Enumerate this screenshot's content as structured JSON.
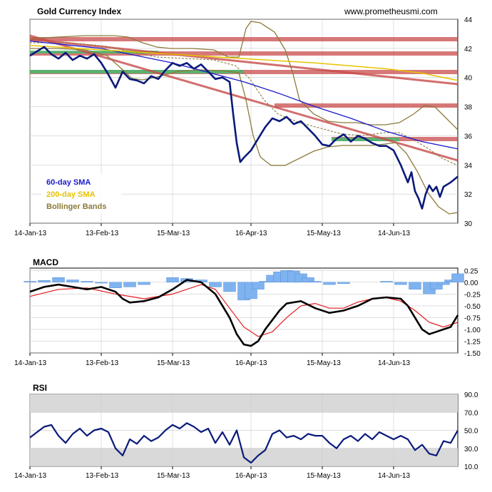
{
  "chart_data": [
    {
      "type": "line",
      "title": "Gold Currency Index",
      "source_text": "www.prometheusmi.com",
      "x_ticks": [
        "14-Jan-13",
        "13-Feb-13",
        "15-Mar-13",
        "16-Apr-13",
        "15-May-13",
        "14-Jun-13"
      ],
      "y_ticks": [
        30,
        32,
        34,
        36,
        38,
        40,
        42,
        44
      ],
      "ylim": [
        30,
        44
      ],
      "xlim": [
        0,
        120
      ],
      "x_tick_positions": [
        0,
        20,
        40,
        62,
        82,
        102
      ],
      "grid": true,
      "legend_position": "bottom-left",
      "legend": [
        {
          "label": "60-day SMA",
          "color": "#1a1acc"
        },
        {
          "label": "200-day SMA",
          "color": "#e6c300"
        },
        {
          "label": "Bollinger Bands",
          "color": "#8b7a3a"
        }
      ],
      "series": [
        {
          "name": "Gold Currency Index",
          "color": "#0a1a7a",
          "x": [
            0,
            2,
            4,
            6,
            8,
            10,
            12,
            14,
            16,
            18,
            20,
            22,
            24,
            26,
            28,
            30,
            32,
            34,
            36,
            38,
            40,
            42,
            44,
            46,
            48,
            50,
            52,
            54,
            56,
            57,
            58,
            59,
            60,
            62,
            64,
            66,
            68,
            70,
            72,
            74,
            76,
            78,
            80,
            82,
            84,
            86,
            88,
            90,
            92,
            94,
            96,
            98,
            100,
            102,
            104,
            106,
            107,
            108,
            109,
            110,
            111,
            112,
            113,
            114,
            115,
            116,
            118,
            120
          ],
          "values": [
            41.5,
            41.8,
            42.1,
            41.6,
            41.3,
            41.7,
            41.2,
            41.5,
            41.3,
            41.6,
            41.0,
            40.2,
            39.3,
            40.4,
            39.9,
            39.8,
            39.6,
            40.1,
            39.9,
            40.5,
            41.0,
            40.8,
            41.0,
            40.6,
            40.9,
            40.4,
            39.9,
            40.0,
            39.7,
            37.5,
            35.5,
            34.2,
            34.5,
            35.0,
            35.8,
            36.6,
            37.2,
            37.0,
            37.3,
            36.8,
            37.0,
            36.5,
            36.0,
            35.4,
            35.3,
            35.8,
            36.1,
            35.6,
            36.0,
            35.8,
            35.5,
            35.3,
            35.3,
            35.0,
            34.0,
            32.8,
            33.5,
            32.2,
            31.7,
            31.0,
            32.0,
            32.6,
            32.2,
            32.5,
            31.8,
            32.5,
            32.8,
            33.2
          ]
        },
        {
          "name": "60-day SMA",
          "color": "#1a1acc",
          "x": [
            0,
            20,
            40,
            60,
            70,
            80,
            90,
            100,
            110,
            120
          ],
          "values": [
            42.5,
            42.0,
            41.0,
            39.7,
            38.9,
            38.0,
            37.2,
            36.3,
            35.6,
            35.1
          ]
        },
        {
          "name": "200-day SMA",
          "color": "#e6c300",
          "x": [
            0,
            20,
            40,
            60,
            80,
            100,
            110,
            120
          ],
          "values": [
            42.2,
            41.9,
            41.6,
            41.3,
            41.0,
            40.6,
            40.3,
            39.8
          ]
        }
      ]
    },
    {
      "type": "bar",
      "title": "MACD",
      "x_ticks": [
        "14-Jan-13",
        "13-Feb-13",
        "15-Mar-13",
        "16-Apr-13",
        "15-May-13",
        "14-Jun-13"
      ],
      "x_tick_positions": [
        0,
        20,
        40,
        62,
        82,
        102
      ],
      "y_ticks": [
        "0.25",
        "0.00",
        "-0.25",
        "-0.50",
        "-0.75",
        "-1.00",
        "-1.25",
        "-1.50"
      ],
      "ylim": [
        -1.5,
        0.3
      ],
      "xlim": [
        0,
        120
      ],
      "series": [
        {
          "name": "MACD",
          "color": "#000000",
          "x": [
            0,
            4,
            8,
            12,
            16,
            20,
            24,
            26,
            28,
            32,
            36,
            40,
            44,
            48,
            52,
            56,
            58,
            60,
            62,
            64,
            66,
            68,
            70,
            72,
            76,
            80,
            84,
            88,
            92,
            96,
            100,
            104,
            106,
            108,
            110,
            112,
            114,
            116,
            118,
            120
          ],
          "values": [
            -0.2,
            -0.1,
            -0.05,
            -0.1,
            -0.15,
            -0.1,
            -0.2,
            -0.35,
            -0.43,
            -0.4,
            -0.32,
            -0.15,
            0.05,
            0.0,
            -0.25,
            -0.75,
            -1.1,
            -1.32,
            -1.35,
            -1.25,
            -1.0,
            -0.8,
            -0.6,
            -0.45,
            -0.4,
            -0.55,
            -0.65,
            -0.6,
            -0.5,
            -0.35,
            -0.32,
            -0.35,
            -0.5,
            -0.75,
            -1.0,
            -1.1,
            -1.05,
            -1.0,
            -0.95,
            -0.7
          ]
        },
        {
          "name": "Signal",
          "color": "#e41a1c",
          "x": [
            0,
            8,
            16,
            24,
            32,
            40,
            48,
            52,
            56,
            60,
            64,
            68,
            72,
            76,
            80,
            84,
            88,
            92,
            96,
            100,
            104,
            108,
            112,
            116,
            120
          ],
          "values": [
            -0.3,
            -0.15,
            -0.12,
            -0.25,
            -0.35,
            -0.25,
            -0.05,
            -0.15,
            -0.55,
            -0.95,
            -1.15,
            -1.05,
            -0.75,
            -0.5,
            -0.45,
            -0.55,
            -0.55,
            -0.42,
            -0.35,
            -0.33,
            -0.4,
            -0.6,
            -0.85,
            -0.95,
            -0.85
          ]
        },
        {
          "name": "Histogram",
          "color": "#7fb3f0",
          "x": [
            0,
            4,
            8,
            12,
            16,
            20,
            24,
            28,
            32,
            36,
            40,
            44,
            48,
            52,
            56,
            60,
            62,
            64,
            66,
            68,
            70,
            72,
            74,
            76,
            78,
            80,
            84,
            88,
            92,
            96,
            100,
            104,
            108,
            112,
            114,
            116,
            118,
            120
          ],
          "values": [
            0.02,
            0.04,
            0.1,
            0.05,
            0.02,
            -0.02,
            -0.12,
            -0.1,
            -0.05,
            0.0,
            0.1,
            0.08,
            0.05,
            -0.1,
            -0.2,
            -0.38,
            -0.35,
            -0.15,
            0.02,
            0.15,
            0.22,
            0.25,
            0.24,
            0.18,
            0.1,
            0.02,
            -0.05,
            -0.03,
            0.0,
            0.0,
            0.02,
            -0.05,
            -0.15,
            -0.25,
            -0.15,
            -0.05,
            0.05,
            0.18
          ]
        }
      ]
    },
    {
      "type": "line",
      "title": "RSI",
      "x_ticks": [
        "14-Jan-13",
        "13-Feb-13",
        "15-Mar-13",
        "16-Apr-13",
        "15-May-13",
        "14-Jun-13"
      ],
      "x_tick_positions": [
        0,
        20,
        40,
        62,
        82,
        102
      ],
      "y_ticks": [
        "10.0",
        "30.0",
        "50.0",
        "70.0",
        "90.0"
      ],
      "ylim": [
        10,
        90
      ],
      "xlim": [
        0,
        120
      ],
      "shaded_bands": [
        [
          10,
          30
        ],
        [
          70,
          90
        ]
      ],
      "series": [
        {
          "name": "RSI",
          "color": "#0a1a7a",
          "x": [
            0,
            2,
            4,
            6,
            8,
            10,
            12,
            14,
            16,
            18,
            20,
            22,
            24,
            26,
            28,
            30,
            32,
            34,
            36,
            38,
            40,
            42,
            44,
            46,
            48,
            50,
            52,
            54,
            56,
            58,
            60,
            62,
            64,
            66,
            68,
            70,
            72,
            74,
            76,
            78,
            80,
            82,
            84,
            86,
            88,
            90,
            92,
            94,
            96,
            98,
            100,
            102,
            104,
            106,
            108,
            110,
            112,
            114,
            116,
            118,
            120
          ],
          "values": [
            42,
            48,
            54,
            56,
            44,
            36,
            46,
            52,
            44,
            50,
            52,
            48,
            30,
            22,
            40,
            35,
            44,
            38,
            42,
            50,
            56,
            52,
            58,
            54,
            48,
            52,
            36,
            48,
            34,
            50,
            20,
            14,
            22,
            28,
            46,
            50,
            42,
            44,
            40,
            46,
            44,
            44,
            36,
            30,
            40,
            44,
            38,
            46,
            40,
            48,
            44,
            40,
            44,
            40,
            28,
            34,
            24,
            22,
            38,
            36,
            50
          ]
        }
      ]
    }
  ],
  "legend_labels": {
    "sma60": "60-day SMA",
    "sma200": "200-day SMA",
    "bollinger": "Bollinger Bands"
  }
}
